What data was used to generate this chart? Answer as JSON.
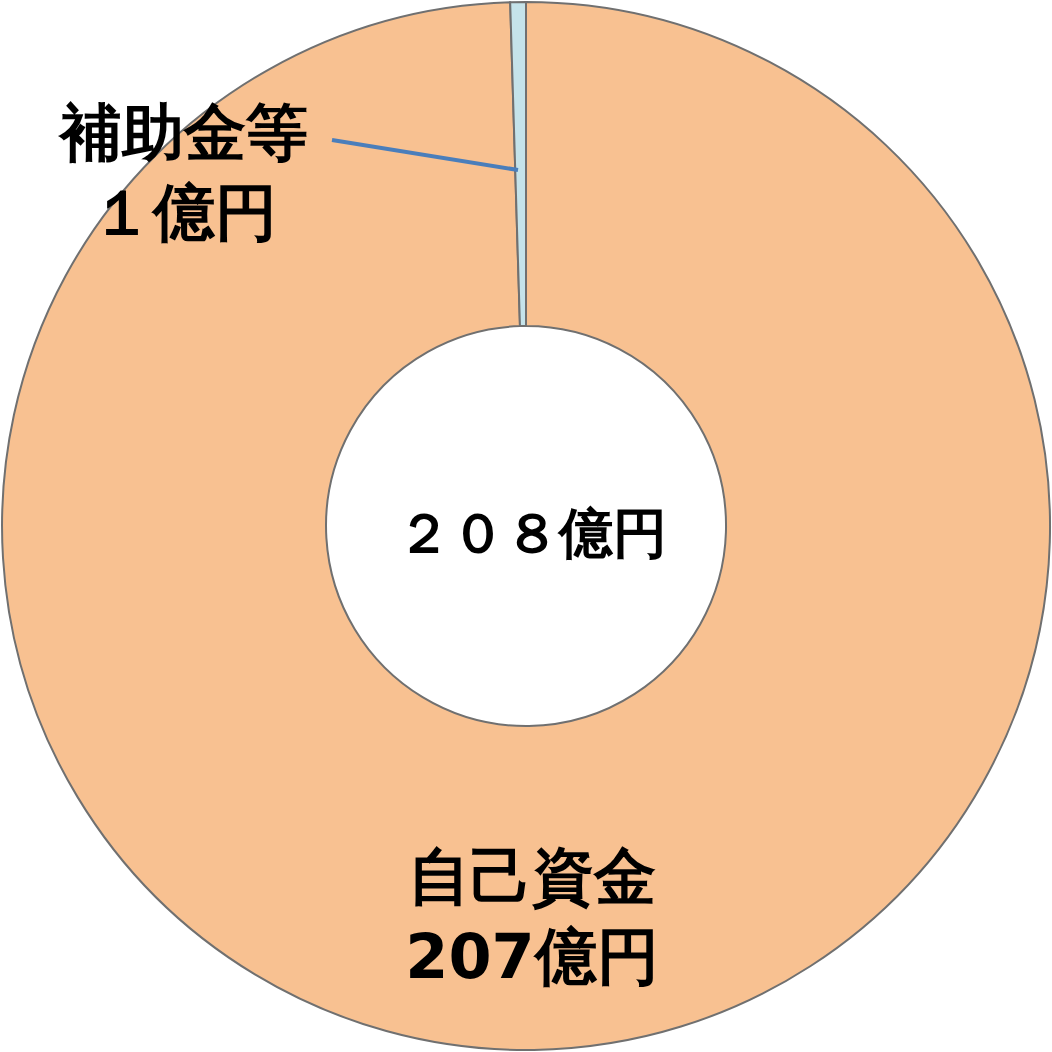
{
  "chart_data": {
    "type": "donut",
    "categories": [
      "自己資金",
      "補助金等"
    ],
    "values": [
      207,
      1
    ],
    "colors": [
      "#f8c191",
      "#c5e3ea"
    ],
    "value_labels": [
      "207億円",
      "１億円"
    ],
    "annotations": [
      "２０８億円"
    ]
  }
}
